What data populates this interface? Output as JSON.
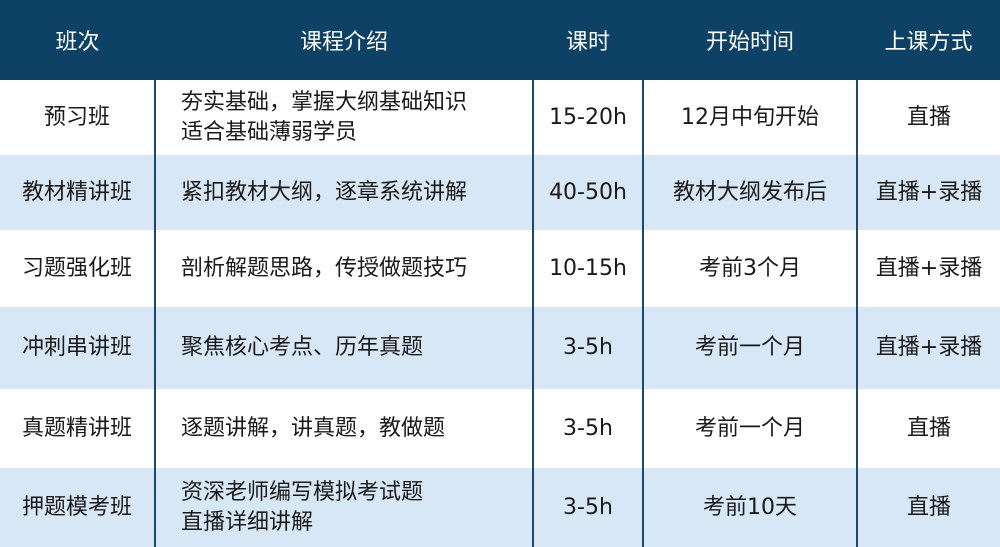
{
  "headers": [
    "班次",
    "课程介绍",
    "课时",
    "开始时间",
    "上课方式"
  ],
  "rows": [
    {
      "name": "预习班",
      "intro": [
        "夯实基础，掌握大纲基础知识",
        "适合基础薄弱学员"
      ],
      "hours": "15-20h",
      "start": "12月中旬开始",
      "mode": "直播"
    },
    {
      "name": "教材精讲班",
      "intro": [
        "紧扣教材大纲，逐章系统讲解",
        ""
      ],
      "hours": "40-50h",
      "start": "教材大纲发布后",
      "mode": "直播+录播"
    },
    {
      "name": "习题强化班",
      "intro": [
        "剖析解题思路，传授做题技巧",
        ""
      ],
      "hours": "10-15h",
      "start": "考前3个月",
      "mode": "直播+录播"
    },
    {
      "name": "冲刺串讲班",
      "intro": [
        "聚焦核心考点、历年真题",
        ""
      ],
      "hours": "3-5h",
      "start": "考前一个月",
      "mode": "直播+录播"
    },
    {
      "name": "真题精讲班",
      "intro": [
        "逐题讲解，讲真题，教做题",
        ""
      ],
      "hours": "3-5h",
      "start": "考前一个月",
      "mode": "直播"
    },
    {
      "name": "押题模考班",
      "intro": [
        "资深老师编写模拟考试题",
        "直播详细讲解"
      ],
      "hours": "3-5h",
      "start": "考前10天",
      "mode": "直播"
    }
  ],
  "colors": {
    "header": "#0d4166",
    "alt_row": "#d8e7f5",
    "border": "#1b4a70"
  }
}
